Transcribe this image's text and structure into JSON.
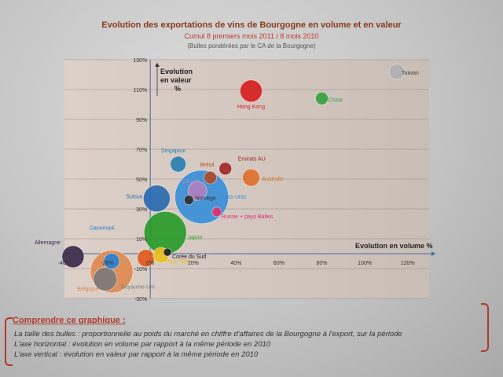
{
  "chart_data": {
    "type": "scatter",
    "title": "Evolution des exportations de vins de Bourgogne en volume et en valeur",
    "subtitle": "Cumul 8 premiers mois 2011 / 8 mois 2010",
    "note": "(Bulles pondérées par le CA de la Bourgogne)",
    "xlabel": "Evolution en volume %",
    "ylabel": "Evolution en valeur %",
    "xlim": [
      -40,
      130
    ],
    "ylim": [
      -30,
      130
    ],
    "x_ticks": [
      "-40%",
      "-20%",
      "0%",
      "20%",
      "40%",
      "60%",
      "80%",
      "100%",
      "120%"
    ],
    "y_ticks": [
      "-30%",
      "-10%",
      "10%",
      "30%",
      "50%",
      "70%",
      "90%",
      "110%",
      "130%"
    ],
    "grid": true,
    "points": [
      {
        "label": "Taiwan",
        "x": 115,
        "y": 122,
        "size": 10,
        "color": "#b0b0b0"
      },
      {
        "label": "Hong Kong",
        "x": 47,
        "y": 109,
        "size": 14,
        "color": "#d62020"
      },
      {
        "label": "Chine",
        "x": 80,
        "y": 104,
        "size": 8,
        "color": "#3aa040"
      },
      {
        "label": "Singapour",
        "x": 13,
        "y": 60,
        "size": 10,
        "color": "#2a7fb0"
      },
      {
        "label": "Brésil",
        "x": 28,
        "y": 51,
        "size": 8,
        "color": "#b04a2a"
      },
      {
        "label": "Emirats AU",
        "x": 35,
        "y": 57,
        "size": 8,
        "color": "#a02828"
      },
      {
        "label": "Australie",
        "x": 47,
        "y": 51,
        "size": 11,
        "color": "#e07030"
      },
      {
        "label": "Canada",
        "x": 22,
        "y": 42,
        "size": 12,
        "color": "#b080c0"
      },
      {
        "label": "Etats-Unis",
        "x": 24,
        "y": 38,
        "size": 34,
        "color": "#3a8fd8"
      },
      {
        "label": "Norvège",
        "x": 18,
        "y": 36,
        "size": 6,
        "color": "#303030"
      },
      {
        "label": "Suisse",
        "x": 3,
        "y": 37,
        "size": 17,
        "color": "#2a6ab0"
      },
      {
        "label": "Russie + pays Baltes",
        "x": 31,
        "y": 28,
        "size": 6,
        "color": "#e03070"
      },
      {
        "label": "Japon",
        "x": 7,
        "y": 14,
        "size": 27,
        "color": "#2a9a2a"
      },
      {
        "label": "Corée du Sud",
        "x": 8,
        "y": 1,
        "size": 5,
        "color": "#202020"
      },
      {
        "label": "Pays Bas",
        "x": 5,
        "y": -1,
        "size": 10,
        "color": "#e8c020"
      },
      {
        "label": "Allemagne",
        "x": -36,
        "y": -2,
        "size": 14,
        "color": "#3a2a4a"
      },
      {
        "label": "Danemark",
        "x": -18,
        "y": -5,
        "size": 10,
        "color": "#2a80d0"
      },
      {
        "label": "Royaume-Uni",
        "x": -21,
        "y": -17,
        "size": 15,
        "color": "#7a7a7a"
      },
      {
        "label": "Belgique",
        "x": -18,
        "y": -12,
        "size": 27,
        "color": "#e08a50"
      },
      {
        "label": "",
        "x": -2,
        "y": -3,
        "size": 11,
        "color": "#e05a20"
      }
    ]
  },
  "legend": {
    "heading": "Comprendre ce graphique :",
    "line1": "La taille des bulles : proportionnelle au poids du marché en chiffre d'affaires de la Bourgogne à l'export, sur la période",
    "line2": "L'axe horizontal : évolution en volume par rapport à la même période en 2010",
    "line3": "L'axe vertical : évolution en valeur par rapport à la même période en 2010"
  }
}
